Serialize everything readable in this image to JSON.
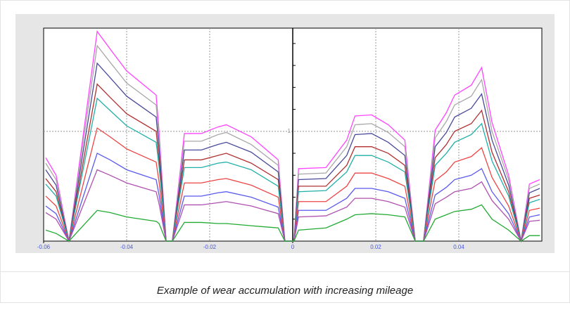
{
  "chart_data": {
    "type": "line",
    "caption": "Example of wear accumulation with increasing mileage",
    "x": [
      -0.0595,
      -0.057,
      -0.0539,
      -0.0471,
      -0.044,
      -0.04,
      -0.0329,
      -0.0322,
      -0.0305,
      -0.029,
      -0.0261,
      -0.022,
      -0.018,
      -0.016,
      -0.01,
      -0.0035,
      -0.0019,
      0.0003,
      0.0014,
      0.008,
      0.013,
      0.015,
      0.019,
      0.023,
      0.027,
      0.0295,
      0.0315,
      0.0343,
      0.037,
      0.039,
      0.043,
      0.0455,
      0.048,
      0.052,
      0.055,
      0.057,
      0.0595
    ],
    "series": [
      {
        "color": "#ff44ff",
        "values": [
          0.76,
          0.6,
          0,
          1.91,
          1.75,
          1.55,
          1.33,
          1.0,
          0,
          0,
          0.98,
          0.98,
          1.04,
          1.06,
          0.95,
          0.74,
          0,
          0,
          0.66,
          0.67,
          0.92,
          1.14,
          1.15,
          1.06,
          0.92,
          0,
          0,
          1.01,
          1.17,
          1.33,
          1.42,
          1.58,
          1.08,
          0.6,
          0,
          0.52,
          0.56
        ]
      },
      {
        "color": "#a8a8a8",
        "values": [
          0.71,
          0.56,
          0,
          1.78,
          1.63,
          1.44,
          1.24,
          0.93,
          0,
          0,
          0.91,
          0.91,
          0.97,
          0.99,
          0.88,
          0.69,
          0,
          0,
          0.61,
          0.62,
          0.86,
          1.06,
          1.07,
          0.99,
          0.86,
          0,
          0,
          0.94,
          1.09,
          1.24,
          1.32,
          1.47,
          1.0,
          0.56,
          0,
          0.48,
          0.52
        ]
      },
      {
        "color": "#4a4a9a",
        "values": [
          0.65,
          0.51,
          0,
          1.62,
          1.49,
          1.32,
          1.13,
          0.85,
          0,
          0,
          0.83,
          0.83,
          0.88,
          0.9,
          0.81,
          0.63,
          0,
          0,
          0.56,
          0.57,
          0.78,
          0.97,
          0.98,
          0.9,
          0.78,
          0,
          0,
          0.86,
          0.99,
          1.13,
          1.21,
          1.34,
          0.92,
          0.51,
          0,
          0.44,
          0.48
        ]
      },
      {
        "color": "#b03030",
        "values": [
          0.57,
          0.45,
          0,
          1.43,
          1.31,
          1.16,
          1.0,
          0.75,
          0,
          0,
          0.74,
          0.74,
          0.78,
          0.8,
          0.71,
          0.56,
          0,
          0,
          0.5,
          0.5,
          0.69,
          0.86,
          0.86,
          0.8,
          0.69,
          0,
          0,
          0.76,
          0.88,
          1.0,
          1.07,
          1.19,
          0.81,
          0.45,
          0,
          0.39,
          0.42
        ]
      },
      {
        "color": "#20b0a8",
        "values": [
          0.52,
          0.41,
          0,
          1.3,
          1.19,
          1.05,
          0.9,
          0.68,
          0,
          0,
          0.67,
          0.67,
          0.71,
          0.72,
          0.65,
          0.5,
          0,
          0,
          0.45,
          0.46,
          0.63,
          0.78,
          0.78,
          0.72,
          0.63,
          0,
          0,
          0.69,
          0.8,
          0.9,
          0.97,
          1.07,
          0.73,
          0.41,
          0,
          0.35,
          0.38
        ]
      },
      {
        "color": "#ee4444",
        "values": [
          0.41,
          0.32,
          0,
          1.03,
          0.95,
          0.84,
          0.72,
          0.54,
          0,
          0,
          0.53,
          0.53,
          0.56,
          0.57,
          0.51,
          0.4,
          0,
          0,
          0.36,
          0.36,
          0.5,
          0.62,
          0.62,
          0.57,
          0.5,
          0,
          0,
          0.55,
          0.63,
          0.72,
          0.77,
          0.85,
          0.58,
          0.32,
          0,
          0.28,
          0.3
        ]
      },
      {
        "color": "#5a5aee",
        "values": [
          0.32,
          0.25,
          0,
          0.8,
          0.74,
          0.65,
          0.56,
          0.42,
          0,
          0,
          0.41,
          0.41,
          0.44,
          0.45,
          0.4,
          0.31,
          0,
          0,
          0.28,
          0.28,
          0.39,
          0.48,
          0.48,
          0.45,
          0.39,
          0,
          0,
          0.42,
          0.49,
          0.56,
          0.6,
          0.66,
          0.45,
          0.25,
          0,
          0.22,
          0.24
        ]
      },
      {
        "color": "#b050b0",
        "values": [
          0.26,
          0.2,
          0,
          0.65,
          0.6,
          0.53,
          0.45,
          0.34,
          0,
          0,
          0.33,
          0.33,
          0.35,
          0.36,
          0.32,
          0.25,
          0,
          0,
          0.22,
          0.23,
          0.31,
          0.39,
          0.39,
          0.36,
          0.31,
          0,
          0,
          0.34,
          0.4,
          0.45,
          0.48,
          0.54,
          0.37,
          0.2,
          0,
          0.18,
          0.19
        ]
      },
      {
        "color": "#22aa33",
        "values": [
          0.1,
          0.07,
          0,
          0.28,
          0.26,
          0.22,
          0.18,
          0.16,
          0,
          0,
          0.17,
          0.17,
          0.16,
          0.16,
          0.14,
          0.12,
          0,
          0,
          0.1,
          0.12,
          0.2,
          0.24,
          0.25,
          0.24,
          0.22,
          0,
          0,
          0.2,
          0.24,
          0.27,
          0.29,
          0.33,
          0.2,
          0.1,
          0,
          0.05,
          0.05
        ]
      }
    ],
    "xlim": [
      -0.06,
      0.06
    ],
    "xticks": [
      -0.06,
      -0.04,
      -0.02,
      0,
      0.02,
      0.04
    ],
    "ylim": [
      0,
      1.94
    ],
    "yticks": [
      1
    ],
    "yminor": [
      0.2,
      0.4,
      0.6,
      0.8,
      1.2,
      1.4,
      1.6,
      1.8
    ],
    "grid": true
  }
}
